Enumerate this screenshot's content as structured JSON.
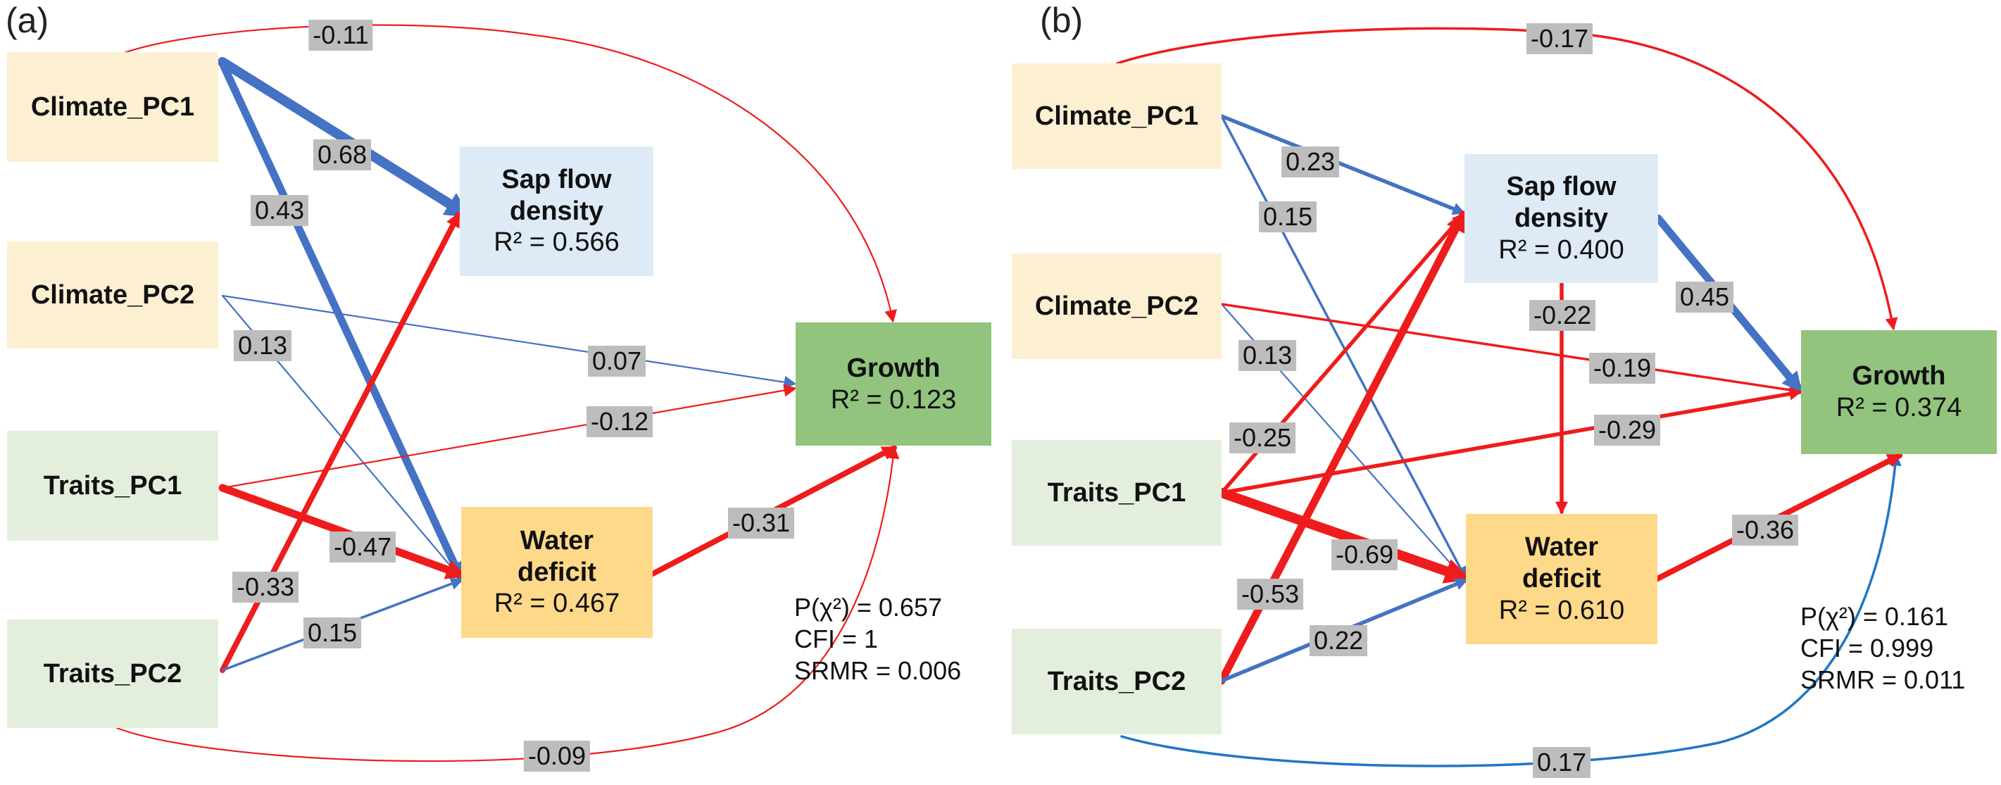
{
  "colors": {
    "positive": "#4472c4",
    "negative": "#ee1c1c",
    "positive_curve": "#1f77c4"
  },
  "panels": [
    {
      "letter": "(a)",
      "nodes": {
        "climate_pc1": {
          "name": "Climate_PC1"
        },
        "climate_pc2": {
          "name": "Climate_PC2"
        },
        "traits_pc1": {
          "name": "Traits_PC1"
        },
        "traits_pc2": {
          "name": "Traits_PC2"
        },
        "sap": {
          "name_line1": "Sap flow",
          "name_line2": "density",
          "r2": "R² = 0.566"
        },
        "water": {
          "name_line1": "Water",
          "name_line2": "deficit",
          "r2": "R² = 0.467"
        },
        "growth": {
          "name": "Growth",
          "r2": "R² = 0.123"
        }
      },
      "paths": [
        {
          "from": "Climate_PC1",
          "to": "Sap flow density",
          "coef": "0.68",
          "sign": "positive",
          "strength": 0.68
        },
        {
          "from": "Climate_PC1",
          "to": "Water deficit",
          "coef": "0.43",
          "sign": "positive",
          "strength": 0.43
        },
        {
          "from": "Climate_PC1",
          "to": "Growth",
          "coef": "-0.11",
          "sign": "negative",
          "strength": 0.11
        },
        {
          "from": "Climate_PC2",
          "to": "Water deficit",
          "coef": "0.13",
          "sign": "positive",
          "strength": 0.13
        },
        {
          "from": "Climate_PC2",
          "to": "Growth",
          "coef": "0.07",
          "sign": "positive",
          "strength": 0.07
        },
        {
          "from": "Traits_PC1",
          "to": "Growth",
          "coef": "-0.12",
          "sign": "negative",
          "strength": 0.12
        },
        {
          "from": "Traits_PC1",
          "to": "Water deficit",
          "coef": "-0.47",
          "sign": "negative",
          "strength": 0.47
        },
        {
          "from": "Traits_PC2",
          "to": "Sap flow density",
          "coef": "-0.33",
          "sign": "negative",
          "strength": 0.33
        },
        {
          "from": "Traits_PC2",
          "to": "Water deficit",
          "coef": "0.15",
          "sign": "positive",
          "strength": 0.15
        },
        {
          "from": "Traits_PC2",
          "to": "Growth",
          "coef": "-0.09",
          "sign": "negative",
          "strength": 0.09
        },
        {
          "from": "Water deficit",
          "to": "Growth",
          "coef": "-0.31",
          "sign": "negative",
          "strength": 0.31
        }
      ],
      "fit": {
        "p_chi2": "P(χ²) = 0.657",
        "cfi": "CFI = 1",
        "srmr": "SRMR = 0.006"
      }
    },
    {
      "letter": "(b)",
      "nodes": {
        "climate_pc1": {
          "name": "Climate_PC1"
        },
        "climate_pc2": {
          "name": "Climate_PC2"
        },
        "traits_pc1": {
          "name": "Traits_PC1"
        },
        "traits_pc2": {
          "name": "Traits_PC2"
        },
        "sap": {
          "name_line1": "Sap flow",
          "name_line2": "density",
          "r2": "R² = 0.400"
        },
        "water": {
          "name_line1": "Water",
          "name_line2": "deficit",
          "r2": "R² = 0.610"
        },
        "growth": {
          "name": "Growth",
          "r2": "R² = 0.374"
        }
      },
      "paths": [
        {
          "from": "Climate_PC1",
          "to": "Growth",
          "coef": "-0.17",
          "sign": "negative",
          "strength": 0.17
        },
        {
          "from": "Climate_PC1",
          "to": "Sap flow density",
          "coef": "0.23",
          "sign": "positive",
          "strength": 0.23
        },
        {
          "from": "Climate_PC1",
          "to": "Water deficit",
          "coef": "0.15",
          "sign": "positive",
          "strength": 0.15
        },
        {
          "from": "Climate_PC2",
          "to": "Water deficit",
          "coef": "0.13",
          "sign": "positive",
          "strength": 0.13
        },
        {
          "from": "Climate_PC2",
          "to": "Growth",
          "coef": "-0.19",
          "sign": "negative",
          "strength": 0.19
        },
        {
          "from": "Sap flow density",
          "to": "Water deficit",
          "coef": "-0.22",
          "sign": "negative",
          "strength": 0.22
        },
        {
          "from": "Sap flow density",
          "to": "Growth",
          "coef": "0.45",
          "sign": "positive",
          "strength": 0.45
        },
        {
          "from": "Traits_PC1",
          "to": "Sap flow density",
          "coef": "-0.25",
          "sign": "negative",
          "strength": 0.25
        },
        {
          "from": "Traits_PC1",
          "to": "Growth",
          "coef": "-0.29",
          "sign": "negative",
          "strength": 0.29
        },
        {
          "from": "Traits_PC1",
          "to": "Water deficit",
          "coef": "-0.69",
          "sign": "negative",
          "strength": 0.69
        },
        {
          "from": "Traits_PC2",
          "to": "Sap flow density",
          "coef": "-0.53",
          "sign": "negative",
          "strength": 0.53
        },
        {
          "from": "Traits_PC2",
          "to": "Water deficit",
          "coef": "0.22",
          "sign": "positive",
          "strength": 0.22
        },
        {
          "from": "Traits_PC2",
          "to": "Growth",
          "coef": "0.17",
          "sign": "positive",
          "strength": 0.17
        },
        {
          "from": "Water deficit",
          "to": "Growth",
          "coef": "-0.36",
          "sign": "negative",
          "strength": 0.36
        }
      ],
      "fit": {
        "p_chi2": "P(χ²) = 0.161",
        "cfi": "CFI = 0.999",
        "srmr": "SRMR = 0.011"
      }
    }
  ]
}
